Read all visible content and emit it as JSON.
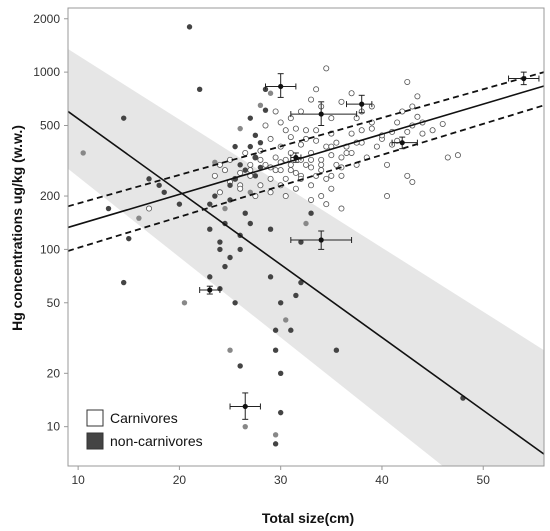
{
  "chart_data": {
    "type": "scatter",
    "xlabel": "Total size(cm)",
    "ylabel": "Hg concentrations ug/kg (w.w.)",
    "x_range": [
      9,
      56
    ],
    "y_range": [
      6,
      2300
    ],
    "y_scale": "log",
    "x_ticks": [
      10,
      20,
      30,
      40,
      50
    ],
    "y_ticks": [
      10,
      20,
      50,
      100,
      200,
      500,
      1000,
      2000
    ],
    "grid": false,
    "legend_position": "bottom-left",
    "legend": [
      {
        "label": "Carnivores",
        "marker": "open-square"
      },
      {
        "label": "non-carnivores",
        "marker": "filled-square"
      }
    ],
    "colors": {
      "carnivores_marker": "#555555",
      "noncarnivores_fill": "#444444",
      "noncarnivores_light_fill": "#888888",
      "line": "#111111",
      "band": "#e6e6e6"
    },
    "series": [
      {
        "name": "Carnivores",
        "marker": "open-circle",
        "points": [
          [
            17,
            170
          ],
          [
            23.5,
            260
          ],
          [
            24,
            300
          ],
          [
            24.5,
            280
          ],
          [
            25,
            320
          ],
          [
            25.5,
            250
          ],
          [
            26,
            270
          ],
          [
            26.5,
            350
          ],
          [
            26,
            230
          ],
          [
            27,
            300
          ],
          [
            27.5,
            330
          ],
          [
            27,
            260
          ],
          [
            28,
            360
          ],
          [
            28,
            230
          ],
          [
            28.5,
            300
          ],
          [
            29,
            250
          ],
          [
            29,
            420
          ],
          [
            29.5,
            280
          ],
          [
            29.5,
            330
          ],
          [
            30,
            280
          ],
          [
            30,
            380
          ],
          [
            30,
            230
          ],
          [
            30.5,
            320
          ],
          [
            30.5,
            250
          ],
          [
            31,
            300
          ],
          [
            31,
            430
          ],
          [
            31,
            350
          ],
          [
            31.5,
            270
          ],
          [
            31.5,
            220
          ],
          [
            32,
            320
          ],
          [
            32,
            390
          ],
          [
            32,
            260
          ],
          [
            32.5,
            300
          ],
          [
            32.5,
            470
          ],
          [
            33,
            290
          ],
          [
            33,
            350
          ],
          [
            33,
            230
          ],
          [
            33.5,
            410
          ],
          [
            33.5,
            260
          ],
          [
            34,
            320
          ],
          [
            34,
            300
          ],
          [
            34,
            200
          ],
          [
            34.5,
            380
          ],
          [
            34.5,
            250
          ],
          [
            35,
            340
          ],
          [
            35,
            450
          ],
          [
            35,
            220
          ],
          [
            35.5,
            300
          ],
          [
            35.5,
            400
          ],
          [
            36,
            330
          ],
          [
            36,
            260
          ],
          [
            36.5,
            380
          ],
          [
            37,
            350
          ],
          [
            37,
            450
          ],
          [
            37.5,
            300
          ],
          [
            37.5,
            550
          ],
          [
            38,
            400
          ],
          [
            38.5,
            330
          ],
          [
            39,
            480
          ],
          [
            39.5,
            380
          ],
          [
            40,
            420
          ],
          [
            40.5,
            300
          ],
          [
            41,
            460
          ],
          [
            41.5,
            520
          ],
          [
            42,
            600
          ],
          [
            42.5,
            460
          ],
          [
            43,
            500
          ],
          [
            43.5,
            560
          ],
          [
            44,
            450
          ],
          [
            44,
            520
          ],
          [
            45,
            470
          ],
          [
            46,
            510
          ],
          [
            28.5,
            500
          ],
          [
            29.5,
            600
          ],
          [
            30.5,
            470
          ],
          [
            31,
            550
          ],
          [
            32,
            600
          ],
          [
            33,
            700
          ],
          [
            33.5,
            800
          ],
          [
            34.5,
            1050
          ],
          [
            34,
            640
          ],
          [
            35,
            550
          ],
          [
            36,
            680
          ],
          [
            37,
            760
          ],
          [
            38,
            600
          ],
          [
            39,
            640
          ],
          [
            40.5,
            200
          ],
          [
            41,
            390
          ],
          [
            41.5,
            410
          ],
          [
            42.5,
            880
          ],
          [
            43,
            640
          ],
          [
            43.5,
            730
          ],
          [
            42.5,
            260
          ],
          [
            43,
            240
          ],
          [
            46.5,
            330
          ],
          [
            47.5,
            340
          ],
          [
            36,
            170
          ],
          [
            34.5,
            180
          ],
          [
            33,
            190
          ],
          [
            30.5,
            200
          ],
          [
            29,
            210
          ],
          [
            27.5,
            200
          ],
          [
            26,
            220
          ],
          [
            25,
            240
          ],
          [
            24,
            210
          ],
          [
            30,
            520
          ],
          [
            31.5,
            480
          ],
          [
            32.5,
            420
          ],
          [
            33.5,
            470
          ],
          [
            35,
            380
          ],
          [
            36.5,
            350
          ],
          [
            37.5,
            400
          ],
          [
            38,
            470
          ],
          [
            39,
            520
          ],
          [
            40,
            440
          ],
          [
            31,
            280
          ],
          [
            32,
            250
          ],
          [
            33,
            320
          ],
          [
            34,
            280
          ],
          [
            35,
            260
          ],
          [
            36,
            290
          ],
          [
            30,
            310
          ],
          [
            29,
            290
          ],
          [
            28,
            320
          ],
          [
            27,
            280
          ]
        ]
      },
      {
        "name": "non-carnivores",
        "marker": "filled-circle",
        "points": [
          [
            10.5,
            350
          ],
          [
            13,
            170
          ],
          [
            14.5,
            550
          ],
          [
            14.5,
            65
          ],
          [
            15,
            115
          ],
          [
            16,
            150
          ],
          [
            17,
            250
          ],
          [
            18,
            230
          ],
          [
            18.5,
            210
          ],
          [
            20,
            180
          ],
          [
            20.5,
            50
          ],
          [
            21,
            1800
          ],
          [
            22,
            800
          ],
          [
            23,
            130
          ],
          [
            23,
            180
          ],
          [
            23.5,
            310
          ],
          [
            23.5,
            200
          ],
          [
            24,
            110
          ],
          [
            24,
            100
          ],
          [
            24,
            60
          ],
          [
            24.5,
            170
          ],
          [
            24.5,
            140
          ],
          [
            24.5,
            80
          ],
          [
            25,
            90
          ],
          [
            25,
            190
          ],
          [
            25,
            27
          ],
          [
            25,
            230
          ],
          [
            25.5,
            380
          ],
          [
            25.5,
            250
          ],
          [
            25.5,
            50
          ],
          [
            26,
            480
          ],
          [
            26,
            300
          ],
          [
            26,
            120
          ],
          [
            26,
            100
          ],
          [
            26,
            22
          ],
          [
            26.5,
            10
          ],
          [
            26.5,
            280
          ],
          [
            26.5,
            160
          ],
          [
            27,
            550
          ],
          [
            27,
            380
          ],
          [
            27,
            210
          ],
          [
            27,
            140
          ],
          [
            27.5,
            440
          ],
          [
            27.5,
            330
          ],
          [
            27.5,
            260
          ],
          [
            28,
            650
          ],
          [
            28,
            400
          ],
          [
            28,
            290
          ],
          [
            28.5,
            800
          ],
          [
            28.5,
            610
          ],
          [
            29,
            760
          ],
          [
            29,
            130
          ],
          [
            29,
            70
          ],
          [
            29.5,
            35
          ],
          [
            29.5,
            27
          ],
          [
            29.5,
            9
          ],
          [
            29.5,
            8
          ],
          [
            30,
            12
          ],
          [
            30,
            20
          ],
          [
            30,
            50
          ],
          [
            30.5,
            40
          ],
          [
            31,
            35
          ],
          [
            31.5,
            55
          ],
          [
            32,
            65
          ],
          [
            32,
            110
          ],
          [
            32.5,
            140
          ],
          [
            33,
            160
          ],
          [
            35.5,
            27
          ],
          [
            48,
            14.5
          ],
          [
            23,
            70
          ]
        ]
      }
    ],
    "fit_lines": [
      {
        "series": "Carnivores",
        "style": "solid",
        "points": [
          [
            9,
            133
          ],
          [
            56,
            835
          ]
        ]
      },
      {
        "series": "Carnivores",
        "style": "dashed",
        "points": [
          [
            9,
            175
          ],
          [
            56,
            1000
          ]
        ]
      },
      {
        "series": "Carnivores",
        "style": "dashed",
        "points": [
          [
            9,
            98
          ],
          [
            56,
            650
          ]
        ]
      },
      {
        "series": "non-carnivores",
        "style": "solid",
        "points": [
          [
            9,
            600
          ],
          [
            56,
            7
          ]
        ]
      }
    ],
    "confidence_band": {
      "series": "non-carnivores",
      "upper": [
        [
          9,
          1350
        ],
        [
          56,
          27
        ]
      ],
      "lower": [
        [
          9,
          285
        ],
        [
          46,
          6
        ],
        [
          56,
          6
        ]
      ]
    },
    "error_bars": [
      {
        "x": 30,
        "y": 830,
        "xerr": [
          28.5,
          31.5
        ],
        "yerr": [
          720,
          980
        ]
      },
      {
        "x": 34,
        "y": 580,
        "xerr": [
          31,
          37.5
        ],
        "yerr": [
          500,
          680
        ]
      },
      {
        "x": 38,
        "y": 660,
        "xerr": [
          36.5,
          39
        ],
        "yerr": [
          590,
          740
        ]
      },
      {
        "x": 42,
        "y": 400,
        "xerr": [
          41,
          43.5
        ],
        "yerr": [
          370,
          430
        ]
      },
      {
        "x": 54,
        "y": 920,
        "xerr": [
          52.5,
          55.5
        ],
        "yerr": [
          850,
          1000
        ]
      },
      {
        "x": 34,
        "y": 113,
        "xerr": [
          31,
          37
        ],
        "yerr": [
          100,
          127
        ]
      },
      {
        "x": 23,
        "y": 59,
        "xerr": [
          22,
          24
        ],
        "yerr": [
          56,
          62
        ]
      },
      {
        "x": 26.5,
        "y": 13,
        "xerr": [
          25,
          28
        ],
        "yerr": [
          11,
          15.5
        ]
      },
      {
        "x": 31.5,
        "y": 330,
        "xerr": [
          31,
          32
        ],
        "yerr": [
          310,
          350
        ]
      }
    ]
  }
}
